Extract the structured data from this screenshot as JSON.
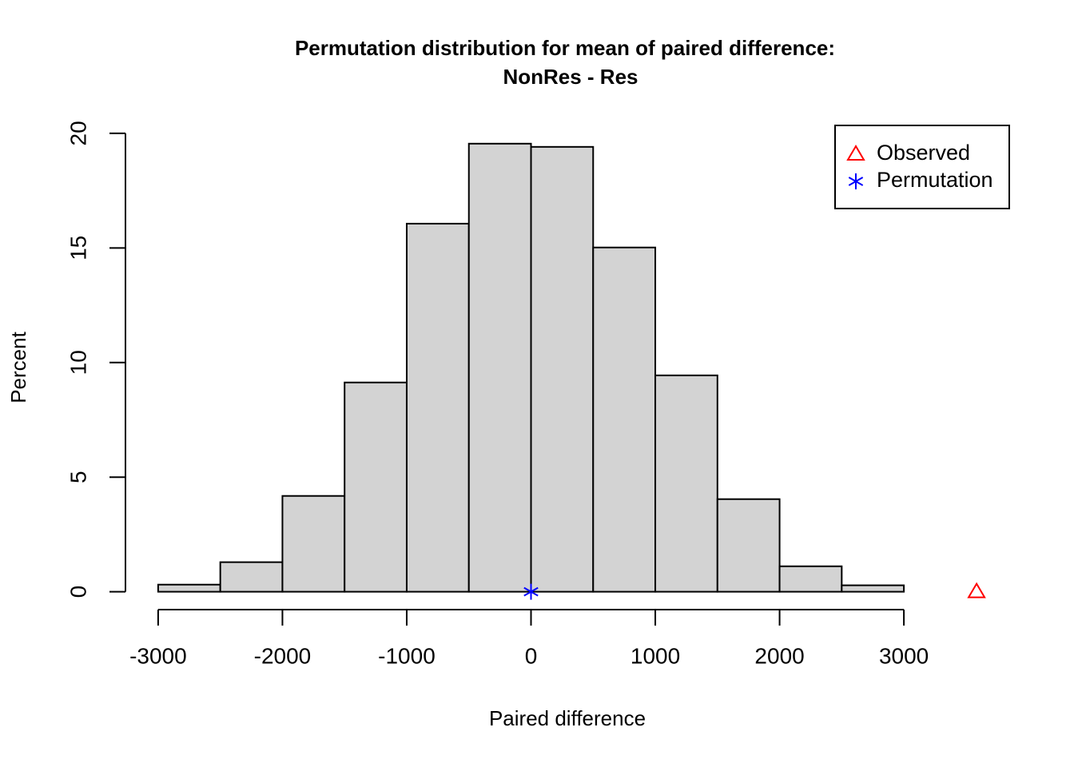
{
  "chart_data": {
    "type": "histogram",
    "title": [
      "Permutation distribution for mean of paired difference:",
      "NonRes - Res"
    ],
    "x_label": "Paired difference",
    "y_label": "Percent",
    "bins": [
      -3000,
      -2500,
      -2000,
      -1500,
      -1000,
      -500,
      0,
      500,
      1000,
      1500,
      2000,
      2500,
      3000
    ],
    "values": [
      0.31,
      1.29,
      4.18,
      9.13,
      16.06,
      19.55,
      19.41,
      15.02,
      9.44,
      4.04,
      1.11,
      0.28
    ],
    "color": "#d3d3d3",
    "points": [
      {
        "name": "Observed",
        "color": "#ff0000",
        "marker": "triangle",
        "x": 3585,
        "y": 0
      },
      {
        "name": "Permutation",
        "color": "#0000ff",
        "marker": "asterisk",
        "x": 0,
        "y": 0
      }
    ],
    "xlim": [
      -3263,
      3848
    ],
    "ylim": [
      -0.78,
      20.38
    ],
    "xticks": [
      -3000,
      -2000,
      -1000,
      0,
      1000,
      2000,
      3000
    ],
    "yticks": [
      0,
      5,
      10,
      15,
      20
    ],
    "legend": "top-right"
  }
}
